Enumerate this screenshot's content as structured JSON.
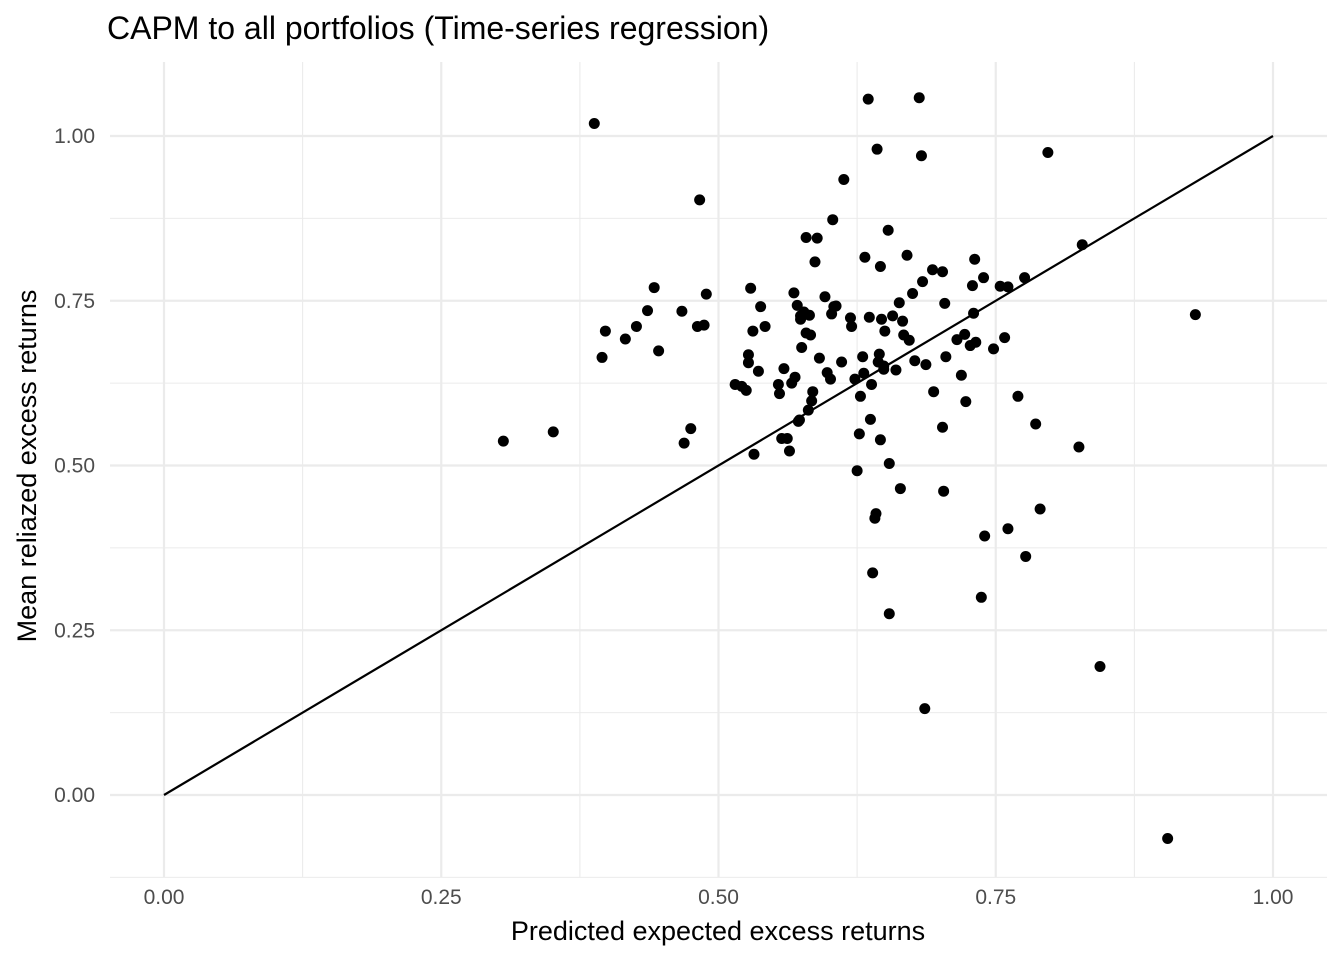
{
  "chart_data": {
    "type": "scatter",
    "title": "CAPM to all portfolios (Time-series regression)",
    "xlabel": "Predicted expected excess returns",
    "ylabel": "Mean reliazed excess returns",
    "xlim": [
      -0.05,
      1.05
    ],
    "ylim": [
      -0.12,
      1.1
    ],
    "x_ticks": [
      0.0,
      0.25,
      0.5,
      0.75,
      1.0
    ],
    "x_tick_labels": [
      "0.00",
      "0.25",
      "0.50",
      "0.75",
      "1.00"
    ],
    "y_ticks": [
      0.0,
      0.25,
      0.5,
      0.75,
      1.0
    ],
    "y_tick_labels": [
      "0.00",
      "0.25",
      "0.50",
      "0.75",
      "1.00"
    ],
    "grid": true,
    "reference_line": {
      "from": [
        0,
        0
      ],
      "to": [
        1,
        1
      ]
    },
    "colors": {
      "points": "#000000",
      "line": "#000000",
      "grid": "#ebebeb",
      "tick_text": "#4d4d4d"
    },
    "points": [
      [
        0.306,
        0.537
      ],
      [
        0.351,
        0.551
      ],
      [
        0.388,
        1.019
      ],
      [
        0.395,
        0.664
      ],
      [
        0.398,
        0.704
      ],
      [
        0.416,
        0.692
      ],
      [
        0.426,
        0.711
      ],
      [
        0.436,
        0.735
      ],
      [
        0.442,
        0.77
      ],
      [
        0.446,
        0.674
      ],
      [
        0.467,
        0.734
      ],
      [
        0.469,
        0.534
      ],
      [
        0.475,
        0.556
      ],
      [
        0.481,
        0.711
      ],
      [
        0.483,
        0.903
      ],
      [
        0.487,
        0.713
      ],
      [
        0.489,
        0.76
      ],
      [
        0.515,
        0.623
      ],
      [
        0.521,
        0.62
      ],
      [
        0.525,
        0.614
      ],
      [
        0.527,
        0.656
      ],
      [
        0.527,
        0.668
      ],
      [
        0.529,
        0.769
      ],
      [
        0.531,
        0.704
      ],
      [
        0.532,
        0.517
      ],
      [
        0.536,
        0.643
      ],
      [
        0.538,
        0.741
      ],
      [
        0.542,
        0.711
      ],
      [
        0.554,
        0.623
      ],
      [
        0.555,
        0.609
      ],
      [
        0.557,
        0.541
      ],
      [
        0.559,
        0.647
      ],
      [
        0.562,
        0.541
      ],
      [
        0.564,
        0.522
      ],
      [
        0.566,
        0.625
      ],
      [
        0.568,
        0.762
      ],
      [
        0.569,
        0.634
      ],
      [
        0.571,
        0.743
      ],
      [
        0.572,
        0.567
      ],
      [
        0.573,
        0.569
      ],
      [
        0.574,
        0.727
      ],
      [
        0.574,
        0.722
      ],
      [
        0.575,
        0.679
      ],
      [
        0.577,
        0.733
      ],
      [
        0.579,
        0.701
      ],
      [
        0.579,
        0.846
      ],
      [
        0.581,
        0.584
      ],
      [
        0.582,
        0.728
      ],
      [
        0.583,
        0.698
      ],
      [
        0.584,
        0.598
      ],
      [
        0.585,
        0.612
      ],
      [
        0.587,
        0.809
      ],
      [
        0.589,
        0.845
      ],
      [
        0.591,
        0.663
      ],
      [
        0.596,
        0.756
      ],
      [
        0.598,
        0.641
      ],
      [
        0.601,
        0.631
      ],
      [
        0.602,
        0.73
      ],
      [
        0.603,
        0.873
      ],
      [
        0.604,
        0.741
      ],
      [
        0.606,
        0.742
      ],
      [
        0.611,
        0.657
      ],
      [
        0.613,
        0.934
      ],
      [
        0.619,
        0.724
      ],
      [
        0.62,
        0.711
      ],
      [
        0.623,
        0.631
      ],
      [
        0.625,
        0.492
      ],
      [
        0.627,
        0.548
      ],
      [
        0.628,
        0.605
      ],
      [
        0.63,
        0.665
      ],
      [
        0.631,
        0.64
      ],
      [
        0.632,
        0.816
      ],
      [
        0.635,
        1.056
      ],
      [
        0.636,
        0.725
      ],
      [
        0.637,
        0.57
      ],
      [
        0.638,
        0.623
      ],
      [
        0.639,
        0.337
      ],
      [
        0.641,
        0.42
      ],
      [
        0.642,
        0.427
      ],
      [
        0.643,
        0.98
      ],
      [
        0.644,
        0.657
      ],
      [
        0.645,
        0.669
      ],
      [
        0.646,
        0.539
      ],
      [
        0.646,
        0.802
      ],
      [
        0.647,
        0.722
      ],
      [
        0.649,
        0.651
      ],
      [
        0.649,
        0.646
      ],
      [
        0.65,
        0.704
      ],
      [
        0.653,
        0.857
      ],
      [
        0.654,
        0.503
      ],
      [
        0.654,
        0.275
      ],
      [
        0.657,
        0.727
      ],
      [
        0.66,
        0.645
      ],
      [
        0.663,
        0.747
      ],
      [
        0.664,
        0.465
      ],
      [
        0.666,
        0.719
      ],
      [
        0.667,
        0.698
      ],
      [
        0.67,
        0.819
      ],
      [
        0.672,
        0.69
      ],
      [
        0.675,
        0.761
      ],
      [
        0.677,
        0.659
      ],
      [
        0.681,
        1.058
      ],
      [
        0.683,
        0.97
      ],
      [
        0.684,
        0.779
      ],
      [
        0.686,
        0.131
      ],
      [
        0.687,
        0.653
      ],
      [
        0.693,
        0.797
      ],
      [
        0.694,
        0.612
      ],
      [
        0.702,
        0.794
      ],
      [
        0.702,
        0.558
      ],
      [
        0.703,
        0.461
      ],
      [
        0.704,
        0.746
      ],
      [
        0.705,
        0.665
      ],
      [
        0.715,
        0.691
      ],
      [
        0.719,
        0.637
      ],
      [
        0.722,
        0.699
      ],
      [
        0.723,
        0.597
      ],
      [
        0.727,
        0.682
      ],
      [
        0.729,
        0.773
      ],
      [
        0.73,
        0.731
      ],
      [
        0.731,
        0.813
      ],
      [
        0.732,
        0.687
      ],
      [
        0.737,
        0.3
      ],
      [
        0.739,
        0.785
      ],
      [
        0.74,
        0.393
      ],
      [
        0.748,
        0.677
      ],
      [
        0.754,
        0.772
      ],
      [
        0.758,
        0.694
      ],
      [
        0.761,
        0.771
      ],
      [
        0.761,
        0.404
      ],
      [
        0.77,
        0.605
      ],
      [
        0.776,
        0.785
      ],
      [
        0.777,
        0.362
      ],
      [
        0.786,
        0.563
      ],
      [
        0.79,
        0.434
      ],
      [
        0.797,
        0.975
      ],
      [
        0.825,
        0.528
      ],
      [
        0.828,
        0.835
      ],
      [
        0.844,
        0.195
      ],
      [
        0.905,
        -0.066
      ],
      [
        0.93,
        0.729
      ]
    ]
  }
}
